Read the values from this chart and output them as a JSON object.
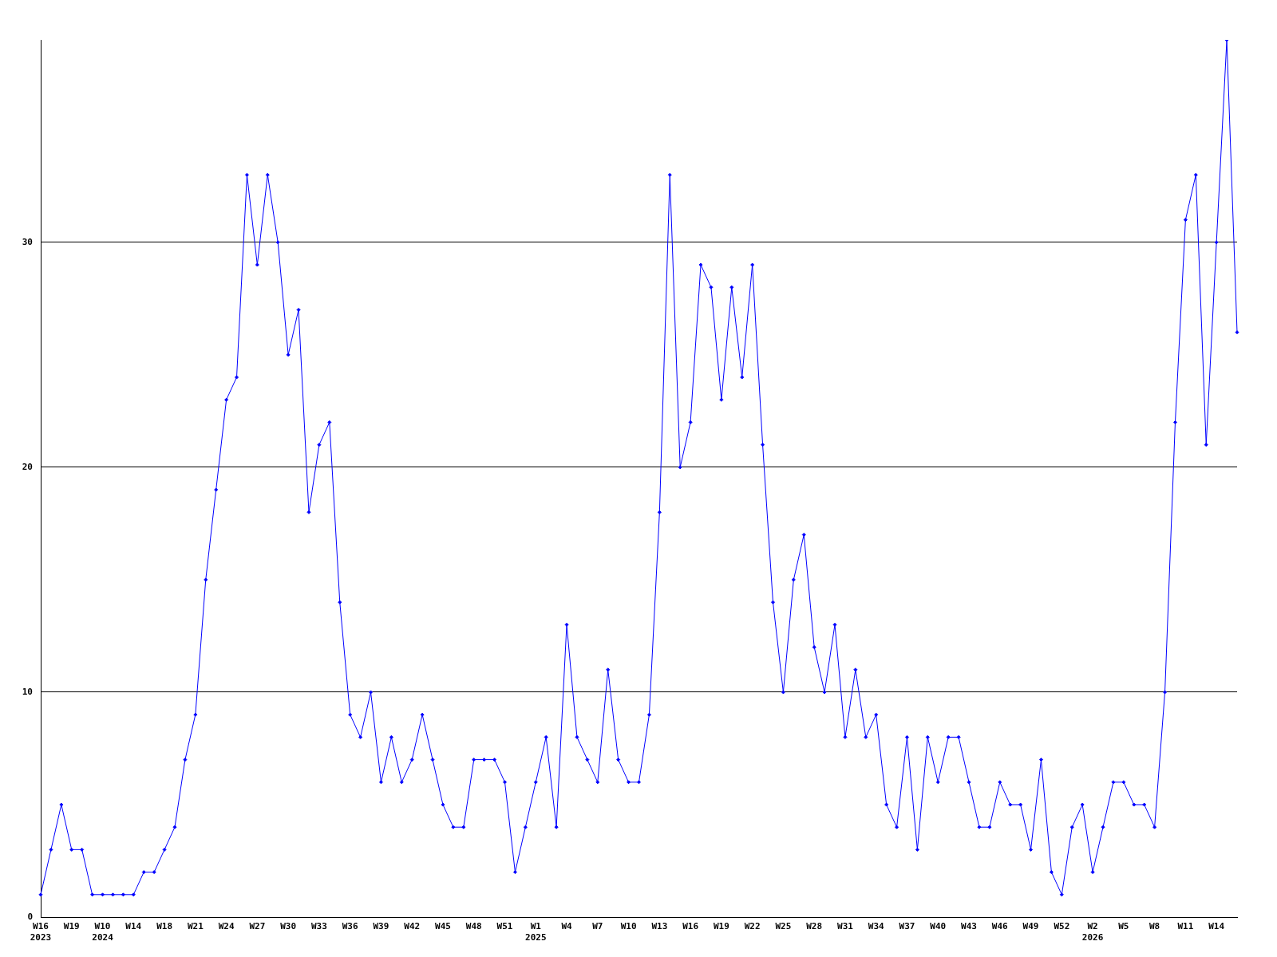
{
  "chart_data": {
    "type": "line",
    "categories": [
      "W16\n2023",
      null,
      null,
      "W19",
      null,
      null,
      "W10\n2024",
      null,
      null,
      "W14",
      null,
      null,
      "W18",
      null,
      null,
      "W21",
      null,
      null,
      "W24",
      null,
      null,
      "W27",
      null,
      null,
      "W30",
      null,
      null,
      "W33",
      null,
      null,
      "W36",
      null,
      null,
      "W39",
      null,
      null,
      "W42",
      null,
      null,
      "W45",
      null,
      null,
      "W48",
      null,
      null,
      "W51",
      null,
      null,
      "W1\n2025",
      null,
      null,
      "W4",
      null,
      null,
      "W7",
      null,
      null,
      "W10",
      null,
      null,
      "W13",
      null,
      null,
      "W16",
      null,
      null,
      "W19",
      null,
      null,
      "W22",
      null,
      null,
      "W25",
      null,
      null,
      "W28",
      null,
      null,
      "W31",
      null,
      null,
      "W34",
      null,
      null,
      "W37",
      null,
      null,
      "W40",
      null,
      null,
      "W43",
      null,
      null,
      "W46",
      null,
      null,
      "W49",
      null,
      null,
      "W52",
      null,
      null,
      "W2\n2026",
      null,
      null,
      "W5",
      null,
      null,
      "W8",
      null,
      null,
      "W11",
      null,
      null,
      "W14",
      null,
      null
    ],
    "series": [
      {
        "color": "#0000ff",
        "values": [
          1,
          3,
          5,
          3,
          3,
          1,
          1,
          1,
          1,
          1,
          2,
          2,
          3,
          4,
          7,
          9,
          15,
          19,
          23,
          24,
          33,
          29,
          33,
          30,
          25,
          27,
          18,
          21,
          22,
          14,
          9,
          8,
          10,
          6,
          8,
          6,
          7,
          9,
          7,
          5,
          4,
          4,
          7,
          7,
          7,
          6,
          2,
          4,
          6,
          8,
          4,
          13,
          8,
          7,
          6,
          11,
          7,
          6,
          6,
          9,
          18,
          33,
          20,
          22,
          29,
          28,
          23,
          28,
          24,
          29,
          21,
          14,
          10,
          15,
          17,
          12,
          10,
          13,
          8,
          11,
          8,
          9,
          5,
          4,
          8,
          3,
          8,
          6,
          8,
          8,
          6,
          4,
          4,
          6,
          5,
          5,
          3,
          7,
          2,
          1,
          4,
          5,
          2,
          4,
          6,
          6,
          5,
          5,
          4,
          10,
          22,
          31,
          33,
          21,
          30,
          39,
          26
        ]
      }
    ],
    "ylim": [
      0,
      39
    ],
    "yticks": [
      0,
      10,
      20,
      30
    ],
    "grid": "y",
    "legend": false,
    "marker": "diamond",
    "line_style": "solid"
  }
}
